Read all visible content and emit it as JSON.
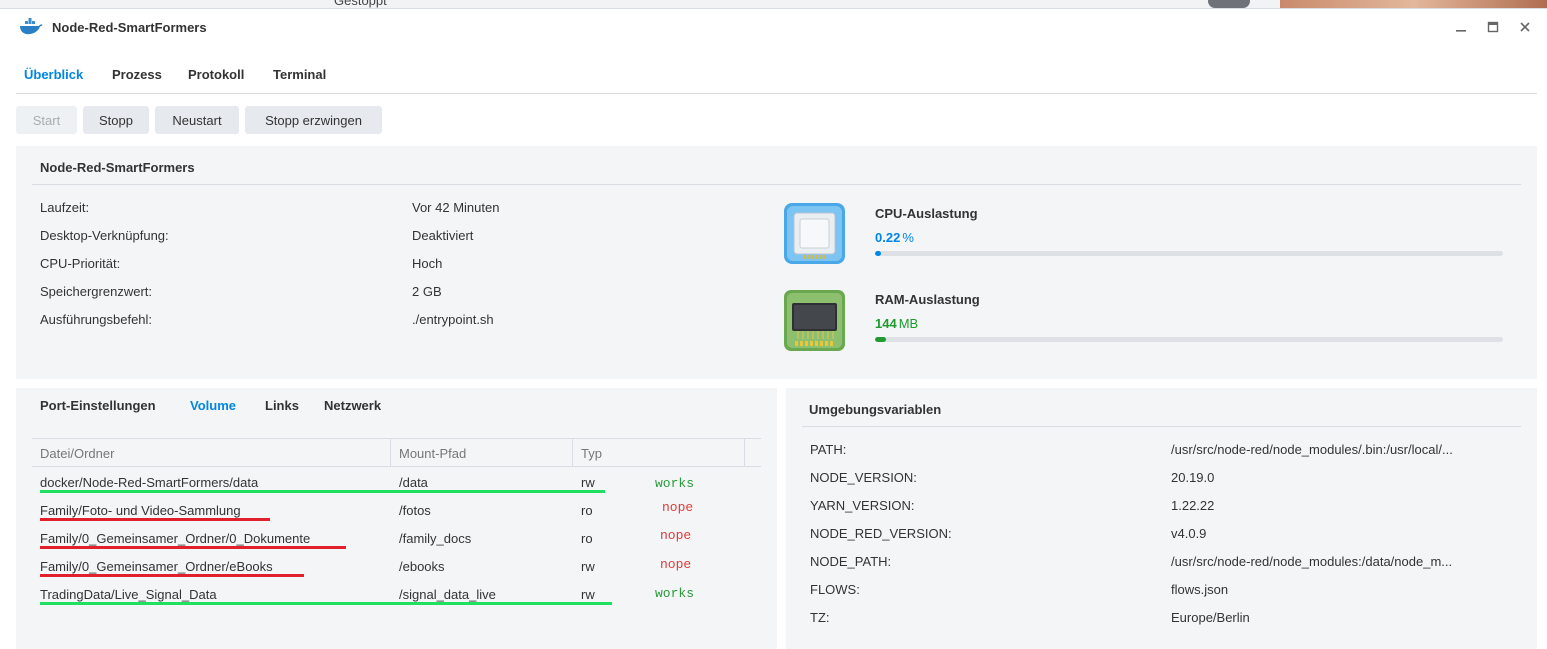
{
  "background": {
    "status_text": "Gestoppt"
  },
  "window": {
    "title": "Node-Red-SmartFormers",
    "controls": [
      "minimize-icon",
      "maximize-icon",
      "close-icon"
    ]
  },
  "tabs": [
    {
      "label": "Überblick",
      "active": true
    },
    {
      "label": "Prozess",
      "active": false
    },
    {
      "label": "Protokoll",
      "active": false
    },
    {
      "label": "Terminal",
      "active": false
    }
  ],
  "actions": [
    {
      "label": "Start",
      "disabled": true
    },
    {
      "label": "Stopp",
      "disabled": false
    },
    {
      "label": "Neustart",
      "disabled": false
    },
    {
      "label": "Stopp erzwingen",
      "disabled": false
    }
  ],
  "overview": {
    "title": "Node-Red-SmartFormers",
    "fields": [
      {
        "label": "Laufzeit:",
        "value": "Vor 42 Minuten"
      },
      {
        "label": "Desktop-Verknüpfung:",
        "value": "Deaktiviert"
      },
      {
        "label": "CPU-Priorität:",
        "value": "Hoch"
      },
      {
        "label": "Speichergrenzwert:",
        "value": "2 GB"
      },
      {
        "label": "Ausführungsbefehl:",
        "value": "./entrypoint.sh"
      }
    ],
    "cpu": {
      "title": "CPU-Auslastung",
      "value": "0.22",
      "unit": "%",
      "fraction": 0.0022,
      "color": "#0086e5",
      "icon": "cpu-chip-icon"
    },
    "ram": {
      "title": "RAM-Auslastung",
      "value": "144",
      "unit": "MB",
      "fraction": 0.018,
      "color": "#1f9b2f",
      "icon": "ram-module-icon"
    }
  },
  "volumes": {
    "subtabs": [
      {
        "label": "Port-Einstellungen",
        "active": false
      },
      {
        "label": "Volume",
        "active": true
      },
      {
        "label": "Links",
        "active": false
      },
      {
        "label": "Netzwerk",
        "active": false
      }
    ],
    "columns": [
      "Datei/Ordner",
      "Mount-Pfad",
      "Typ"
    ],
    "rows": [
      {
        "folder": "docker/Node-Red-SmartFormers/data",
        "mount": "/data",
        "type": "rw",
        "note": "works",
        "status": "ok"
      },
      {
        "folder": "Family/Foto- und Video-Sammlung",
        "mount": "/fotos",
        "type": "ro",
        "note": "nope",
        "status": "bad"
      },
      {
        "folder": "Family/0_Gemeinsamer_Ordner/0_Dokumente",
        "mount": "/family_docs",
        "type": "ro",
        "note": "nope",
        "status": "bad"
      },
      {
        "folder": "Family/0_Gemeinsamer_Ordner/eBooks",
        "mount": "/ebooks",
        "type": "rw",
        "note": "nope",
        "status": "bad"
      },
      {
        "folder": "TradingData/Live_Signal_Data",
        "mount": "/signal_data_live",
        "type": "rw",
        "note": "works",
        "status": "ok"
      }
    ],
    "colors": {
      "ok": "#1fe060",
      "bad": "#e0202a",
      "ok_text": "#2a9a3a",
      "bad_text": "#e03a3a"
    }
  },
  "env": {
    "title": "Umgebungsvariablen",
    "rows": [
      {
        "key": "PATH:",
        "value": "/usr/src/node-red/node_modules/.bin:/usr/local/..."
      },
      {
        "key": "NODE_VERSION:",
        "value": "20.19.0"
      },
      {
        "key": "YARN_VERSION:",
        "value": "1.22.22"
      },
      {
        "key": "NODE_RED_VERSION:",
        "value": "v4.0.9"
      },
      {
        "key": "NODE_PATH:",
        "value": "/usr/src/node-red/node_modules:/data/node_m..."
      },
      {
        "key": "FLOWS:",
        "value": "flows.json"
      },
      {
        "key": "TZ:",
        "value": "Europe/Berlin"
      }
    ]
  }
}
